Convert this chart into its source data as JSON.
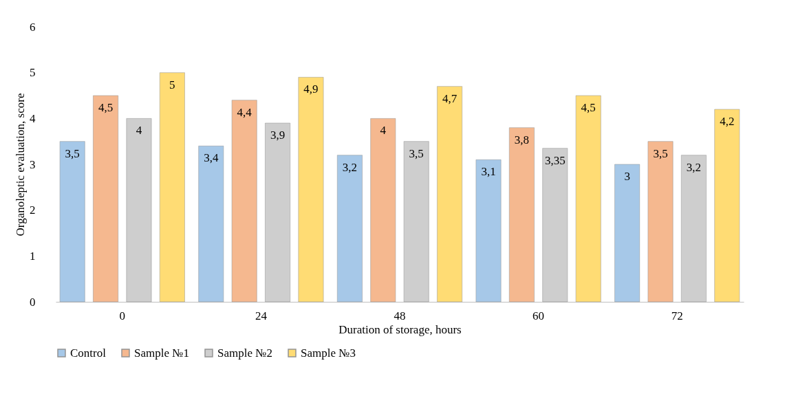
{
  "chart_data": {
    "type": "bar",
    "xlabel": "Duration of storage, hours",
    "ylabel": "Organoleptic evaluation, score",
    "categories": [
      "0",
      "24",
      "48",
      "60",
      "72"
    ],
    "series": [
      {
        "name": "Control",
        "color": "#9dc3e6",
        "values": [
          3.5,
          3.4,
          3.2,
          3.1,
          3
        ],
        "value_labels": [
          "3,5",
          "3,4",
          "3,2",
          "3,1",
          "3"
        ]
      },
      {
        "name": "Sample №1",
        "color": "#f4b183",
        "values": [
          4.5,
          4.4,
          4,
          3.8,
          3.5
        ],
        "value_labels": [
          "4,5",
          "4,4",
          "4",
          "3,8",
          "3,5"
        ]
      },
      {
        "name": "Sample №2",
        "color": "#c9c9c9",
        "values": [
          4,
          3.9,
          3.5,
          3.35,
          3.2
        ],
        "value_labels": [
          "4",
          "3,9",
          "3,5",
          "3,35",
          "3,2"
        ]
      },
      {
        "name": "Sample №3",
        "color": "#ffd966",
        "values": [
          5,
          4.9,
          4.7,
          4.5,
          4.2
        ],
        "value_labels": [
          "5",
          "4,9",
          "4,7",
          "4,5",
          "4,2"
        ]
      }
    ],
    "ylim": [
      0,
      6
    ],
    "yticks": [
      0,
      1,
      2,
      3,
      4,
      5,
      6
    ],
    "legend": "bottom"
  }
}
